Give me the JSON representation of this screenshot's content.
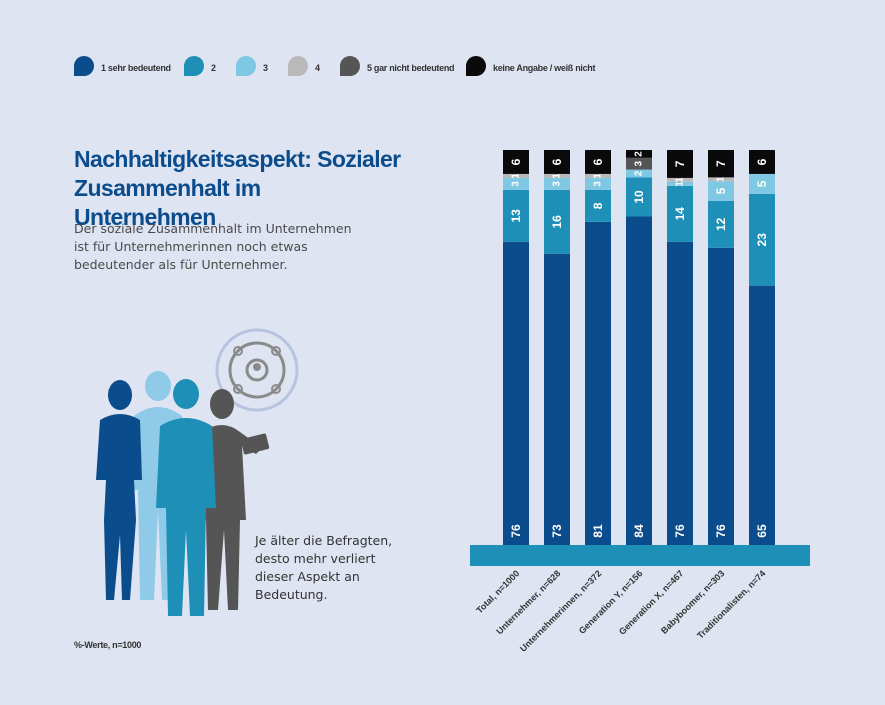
{
  "chart_data": {
    "type": "bar",
    "stacked": true,
    "title": "Nachhaltigkeitsaspekt: Sozialer Zusammenhalt im Unternehmen",
    "subtitle": "Der soziale Zusammenhalt im Unternehmen ist für Unternehmerinnen noch etwas bedeutender als für Unternehmer.",
    "note": "Je älter die Befragten, desto mehr verliert dieser Aspekt an Bedeutung.",
    "footnote": "%-Werte, n=1000",
    "categories": [
      "Total, n=1000",
      "Unternehmer, n=628",
      "Unternehmerinnen, n=372",
      "Generation Y, n=156",
      "Generation X, n=467",
      "Babyboomer, n=303",
      "Traditionalisten, n=74"
    ],
    "series": [
      {
        "name": "1 sehr bedeutend",
        "color": "#0b4c8c",
        "values": [
          76,
          73,
          81,
          84,
          76,
          76,
          65
        ]
      },
      {
        "name": "2",
        "color": "#1e90b8",
        "values": [
          13,
          16,
          8,
          10,
          14,
          12,
          23
        ]
      },
      {
        "name": "3",
        "color": "#7ec8e3",
        "values": [
          3,
          3,
          3,
          2,
          1,
          5,
          5
        ]
      },
      {
        "name": "4",
        "color": "#b9b9b9",
        "values": [
          1,
          1,
          1,
          0,
          1,
          1,
          0
        ]
      },
      {
        "name": "5 gar nicht bedeutend",
        "color": "#555555",
        "values": [
          0,
          0,
          0,
          3,
          0,
          0,
          0
        ]
      },
      {
        "name": "keine Angabe / weiß nicht",
        "color": "#0a0a0a",
        "values": [
          6,
          6,
          6,
          2,
          7,
          7,
          6
        ]
      }
    ],
    "ylim": [
      0,
      100
    ],
    "legend_position": "top-left",
    "base_color": "#1e90b8",
    "label_color": "#ffffff"
  },
  "illustration": {
    "icon": "social-network-icon"
  }
}
